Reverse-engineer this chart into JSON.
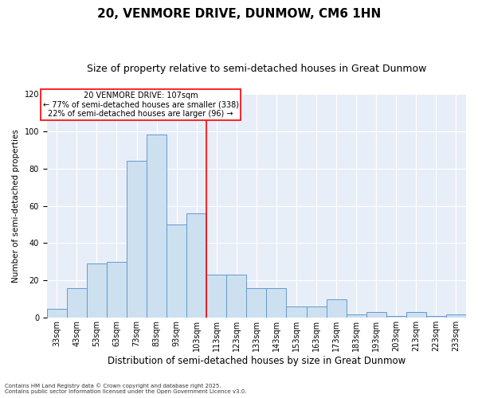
{
  "title": "20, VENMORE DRIVE, DUNMOW, CM6 1HN",
  "subtitle": "Size of property relative to semi-detached houses in Great Dunmow",
  "xlabel": "Distribution of semi-detached houses by size in Great Dunmow",
  "ylabel": "Number of semi-detached properties",
  "categories": [
    "33sqm",
    "43sqm",
    "53sqm",
    "63sqm",
    "73sqm",
    "83sqm",
    "93sqm",
    "103sqm",
    "113sqm",
    "123sqm",
    "133sqm",
    "143sqm",
    "153sqm",
    "163sqm",
    "173sqm",
    "183sqm",
    "193sqm",
    "203sqm",
    "213sqm",
    "223sqm",
    "233sqm"
  ],
  "values": [
    5,
    16,
    29,
    30,
    84,
    98,
    50,
    56,
    23,
    23,
    16,
    16,
    6,
    6,
    10,
    2,
    3,
    1,
    3,
    1,
    2
  ],
  "bar_color": "#cce0f0",
  "bar_edge_color": "#6699cc",
  "annotation_text_line1": "20 VENMORE DRIVE: 107sqm",
  "annotation_text_line2": "← 77% of semi-detached houses are smaller (338)",
  "annotation_text_line3": "22% of semi-detached houses are larger (96) →",
  "ylim": [
    0,
    120
  ],
  "yticks": [
    0,
    20,
    40,
    60,
    80,
    100,
    120
  ],
  "background_color": "#e8eef8",
  "footer_line1": "Contains HM Land Registry data © Crown copyright and database right 2025.",
  "footer_line2": "Contains public sector information licensed under the Open Government Licence v3.0.",
  "title_fontsize": 11,
  "subtitle_fontsize": 9,
  "xlabel_fontsize": 8.5,
  "ylabel_fontsize": 7.5,
  "annotation_fontsize": 7,
  "tick_fontsize": 7
}
